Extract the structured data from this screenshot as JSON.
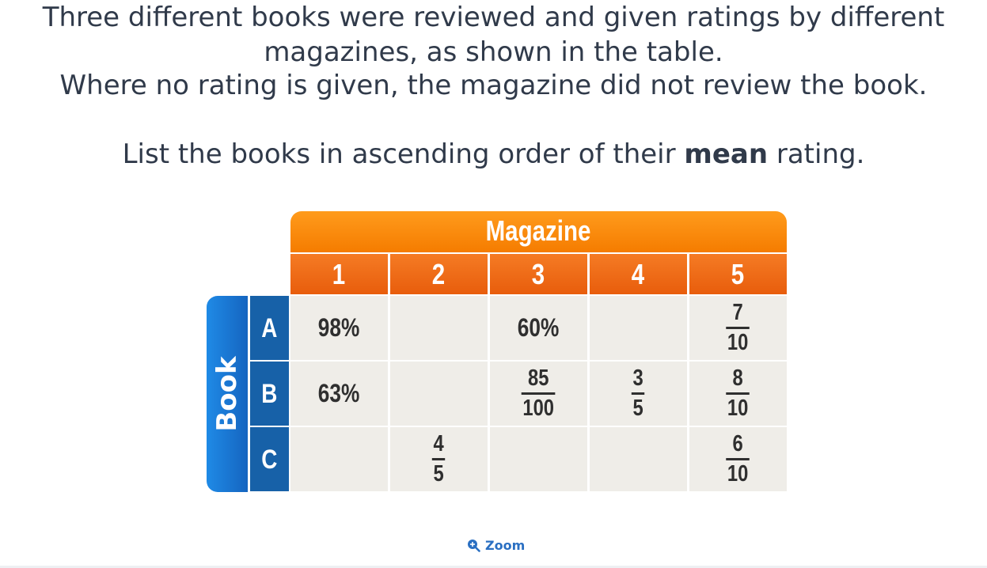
{
  "question": {
    "line1": "Three different books were reviewed and given ratings by different",
    "line2": "magazines, as shown in the table.",
    "line3": "Where no rating is given, the magazine did not review the book.",
    "line4_pre": "List the books in ascending order of their ",
    "line4_bold": "mean",
    "line4_post": " rating."
  },
  "table": {
    "header": "Magazine",
    "row_axis_label": "Book",
    "columns": [
      "1",
      "2",
      "3",
      "4",
      "5"
    ],
    "rows": [
      {
        "label": "A",
        "cells": [
          {
            "text": "98%"
          },
          {
            "text": ""
          },
          {
            "text": "60%"
          },
          {
            "text": ""
          },
          {
            "num": "7",
            "den": "10"
          }
        ]
      },
      {
        "label": "B",
        "cells": [
          {
            "text": "63%"
          },
          {
            "text": ""
          },
          {
            "num": "85",
            "den": "100"
          },
          {
            "num": "3",
            "den": "5"
          },
          {
            "num": "8",
            "den": "10"
          }
        ]
      },
      {
        "label": "C",
        "cells": [
          {
            "text": ""
          },
          {
            "num": "4",
            "den": "5"
          },
          {
            "text": ""
          },
          {
            "text": ""
          },
          {
            "num": "6",
            "den": "10"
          }
        ]
      }
    ]
  },
  "zoom": {
    "label": "Zoom",
    "icon": "zoom-in-icon"
  },
  "colors": {
    "text": "#303a4a",
    "orange_header": "#f57c00",
    "orange_cols": "#e85d0c",
    "blue_book": "#1f8ae6",
    "blue_rows": "#1761a8",
    "cell_bg": "#efede8",
    "link": "#2a6fc2"
  }
}
